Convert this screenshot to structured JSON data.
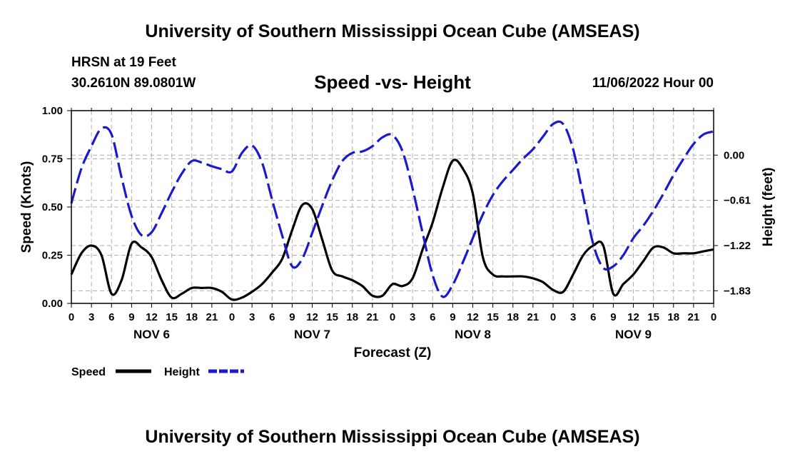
{
  "header": {
    "main_title": "University of Southern Mississippi Ocean Cube (AMSEAS)",
    "station": "HRSN at 19 Feet",
    "coords": "30.2610N  89.0801W",
    "chart_title": "Speed -vs- Height",
    "datetime": "11/06/2022 Hour 00"
  },
  "footer": {
    "title": "University of Southern Mississippi Ocean Cube (AMSEAS)"
  },
  "colors": {
    "speed": "#000000",
    "height": "#1a1acc",
    "grid": "#b0b0b0"
  },
  "chart_data": {
    "type": "line",
    "title": "Speed -vs- Height",
    "xlabel": "Forecast (Z)",
    "ylabel": "Speed (Knots)",
    "y2label": "Height (feet)",
    "xlim": [
      0,
      96
    ],
    "ylim": [
      0,
      1
    ],
    "y2lim": [
      -2.0,
      0.6
    ],
    "y_ticks": [
      0,
      0.25,
      0.5,
      0.75,
      1.0
    ],
    "y_tick_labels": [
      "0.00",
      "0.25",
      "0.50",
      "0.75",
      "1.00"
    ],
    "y2_ticks": [
      0,
      -0.61,
      -1.22,
      -1.83
    ],
    "y2_tick_labels": [
      "0.00",
      "−0.61",
      "−1.22",
      "−1.83"
    ],
    "x_ticks": [
      0,
      3,
      6,
      9,
      12,
      15,
      18,
      21,
      24,
      27,
      30,
      33,
      36,
      39,
      42,
      45,
      48,
      51,
      54,
      57,
      60,
      63,
      66,
      69,
      72,
      75,
      78,
      81,
      84,
      87,
      90,
      93,
      96
    ],
    "x_tick_labels": [
      "0",
      "3",
      "6",
      "9",
      "12",
      "15",
      "18",
      "21",
      "0",
      "3",
      "6",
      "9",
      "12",
      "15",
      "18",
      "21",
      "0",
      "3",
      "6",
      "9",
      "12",
      "15",
      "18",
      "21",
      "0",
      "3",
      "6",
      "9",
      "12",
      "15",
      "18",
      "21",
      "0"
    ],
    "day_labels": [
      {
        "x": 12,
        "label": "NOV 6"
      },
      {
        "x": 36,
        "label": "NOV 7"
      },
      {
        "x": 60,
        "label": "NOV 8"
      },
      {
        "x": 84,
        "label": "NOV 9"
      }
    ],
    "legend": {
      "placement": "bottom-left",
      "speed_label": "Speed",
      "height_label": "Height"
    },
    "series": [
      {
        "name": "Speed",
        "axis": "left",
        "style": "solid",
        "x": [
          0,
          1.5,
          3,
          4.5,
          6,
          7.5,
          9,
          10.5,
          12,
          13.5,
          15,
          16.5,
          18,
          19.5,
          21,
          22.5,
          24,
          25.5,
          27,
          28.5,
          30,
          31.5,
          33,
          34.5,
          36,
          37.5,
          39,
          40.5,
          42,
          43.5,
          45,
          46.5,
          48,
          49.5,
          51,
          52.5,
          54,
          55.5,
          57,
          58.5,
          60,
          61.5,
          63,
          64.5,
          66,
          67.5,
          69,
          70.5,
          72,
          73.5,
          75,
          76.5,
          78,
          79.5,
          81,
          82.5,
          84,
          85.5,
          87,
          88.5,
          90,
          91.5,
          93,
          94.5,
          96
        ],
        "values": [
          0.15,
          0.26,
          0.3,
          0.25,
          0.05,
          0.12,
          0.31,
          0.29,
          0.24,
          0.12,
          0.03,
          0.05,
          0.08,
          0.08,
          0.08,
          0.06,
          0.02,
          0.03,
          0.06,
          0.1,
          0.16,
          0.23,
          0.38,
          0.51,
          0.49,
          0.33,
          0.17,
          0.14,
          0.12,
          0.09,
          0.04,
          0.04,
          0.1,
          0.09,
          0.13,
          0.28,
          0.42,
          0.6,
          0.74,
          0.7,
          0.57,
          0.24,
          0.15,
          0.14,
          0.14,
          0.14,
          0.13,
          0.11,
          0.07,
          0.06,
          0.15,
          0.25,
          0.3,
          0.3,
          0.05,
          0.1,
          0.15,
          0.22,
          0.29,
          0.29,
          0.26,
          0.26,
          0.26,
          0.27,
          0.28
        ]
      },
      {
        "name": "Height",
        "axis": "right",
        "style": "dashed",
        "x": [
          0,
          1.5,
          3,
          4.5,
          6,
          7.5,
          9,
          10.5,
          12,
          13.5,
          15,
          16.5,
          18,
          19.5,
          21,
          22.5,
          24,
          25.5,
          27,
          28.5,
          30,
          31.5,
          33,
          34.5,
          36,
          37.5,
          39,
          40.5,
          42,
          43.5,
          45,
          46.5,
          48,
          49.5,
          51,
          52.5,
          54,
          55.5,
          57,
          58.5,
          60,
          61.5,
          63,
          64.5,
          66,
          67.5,
          69,
          70.5,
          72,
          73.5,
          75,
          76.5,
          78,
          79.5,
          81,
          82.5,
          84,
          85.5,
          87,
          88.5,
          90,
          91.5,
          93,
          94.5,
          96
        ],
        "values": [
          -0.65,
          -0.18,
          0.12,
          0.36,
          0.28,
          -0.3,
          -0.82,
          -1.08,
          -1.04,
          -0.78,
          -0.5,
          -0.25,
          -0.08,
          -0.1,
          -0.15,
          -0.19,
          -0.22,
          0.03,
          0.13,
          -0.1,
          -0.6,
          -1.08,
          -1.5,
          -1.4,
          -1.05,
          -0.68,
          -0.34,
          -0.08,
          0.03,
          0.05,
          0.12,
          0.24,
          0.27,
          0.05,
          -0.45,
          -1.05,
          -1.62,
          -1.91,
          -1.75,
          -1.45,
          -1.12,
          -0.8,
          -0.54,
          -0.35,
          -0.2,
          -0.05,
          0.08,
          0.25,
          0.42,
          0.42,
          0.08,
          -0.55,
          -1.2,
          -1.52,
          -1.5,
          -1.35,
          -1.12,
          -0.95,
          -0.75,
          -0.52,
          -0.27,
          -0.05,
          0.15,
          0.28,
          0.32
        ]
      }
    ]
  }
}
